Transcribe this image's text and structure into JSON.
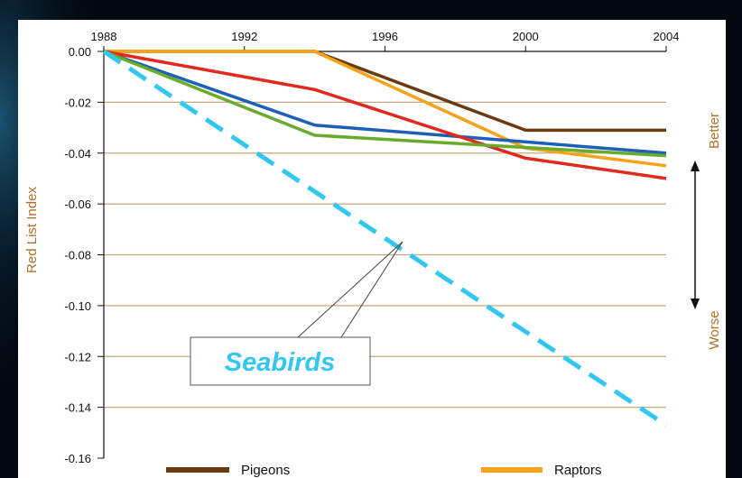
{
  "chart_data": {
    "type": "line",
    "title": "",
    "xlabel": "",
    "ylabel": "Red List Index",
    "x_ticks": [
      "1988",
      "1992",
      "1996",
      "2000",
      "2004"
    ],
    "y_ticks": [
      "0.00",
      "-0.02",
      "-0.04",
      "-0.06",
      "-0.08",
      "-0.10",
      "-0.12",
      "-0.14",
      "-0.16"
    ],
    "xlim": [
      1988,
      2004
    ],
    "ylim": [
      -0.16,
      0
    ],
    "grid": true,
    "series": [
      {
        "name": "Pigeons",
        "color": "#6b3a10",
        "dashed": false,
        "x": [
          1988,
          1994,
          2000,
          2004
        ],
        "y": [
          0.0,
          0.0,
          -0.031,
          -0.031
        ]
      },
      {
        "name": "Raptors",
        "color": "#f5a31a",
        "dashed": false,
        "x": [
          1988,
          1994,
          2000,
          2004
        ],
        "y": [
          0.0,
          0.0,
          -0.038,
          -0.045
        ]
      },
      {
        "name": "",
        "color": "#1f5fb8",
        "dashed": false,
        "x": [
          1988,
          1994,
          2004
        ],
        "y": [
          0.0,
          -0.029,
          -0.04
        ]
      },
      {
        "name": "",
        "color": "#e02a1e",
        "dashed": false,
        "x": [
          1988,
          1994,
          2000,
          2004
        ],
        "y": [
          0.0,
          -0.015,
          -0.042,
          -0.05
        ]
      },
      {
        "name": "",
        "color": "#6aab2e",
        "dashed": false,
        "x": [
          1988,
          1994,
          2004
        ],
        "y": [
          0.0,
          -0.033,
          -0.041
        ]
      },
      {
        "name": "Seabirds",
        "color": "#33c7f0",
        "dashed": true,
        "x": [
          1988,
          2004
        ],
        "y": [
          0.0,
          -0.147
        ]
      }
    ],
    "annotations": {
      "seabirds_label": "Seabirds",
      "better": "Better",
      "worse": "Worse"
    },
    "legend": {
      "placement": "bottom",
      "entries": [
        {
          "label": "Pigeons",
          "color": "#6b3a10"
        },
        {
          "label": "Raptors",
          "color": "#f5a31a"
        }
      ]
    }
  }
}
